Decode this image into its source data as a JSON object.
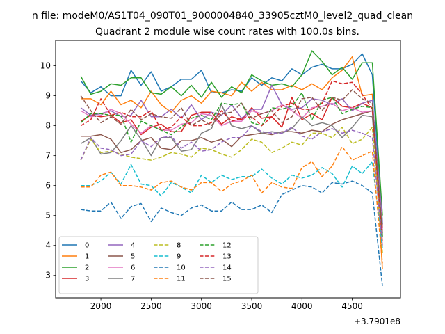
{
  "chart_data": {
    "type": "line",
    "suptitle": "n file: modeM0/AS1T04_090T01_9000004840_33905cztM0_level2_quad_clean",
    "title": "Quadrant 2 module wise count rates with 100.0s bins.",
    "xlabel": "",
    "ylabel": "",
    "x_offset_label": "+3.7901e8",
    "xlim": [
      1550,
      4980
    ],
    "ylim": [
      2.25,
      10.85
    ],
    "xticks": [
      2000,
      2500,
      3000,
      3500,
      4000,
      4500
    ],
    "yticks": [
      3,
      4,
      5,
      6,
      7,
      8,
      9,
      10
    ],
    "legend_position": "lower-left",
    "x": [
      1800,
      1900,
      2000,
      2100,
      2200,
      2300,
      2400,
      2500,
      2600,
      2700,
      2800,
      2900,
      3000,
      3100,
      3200,
      3300,
      3400,
      3500,
      3600,
      3700,
      3800,
      3900,
      4000,
      4100,
      4200,
      4300,
      4400,
      4500,
      4600,
      4700,
      4800
    ],
    "series": [
      {
        "name": "0",
        "color": "#1f77b4",
        "dash": "solid",
        "values": [
          9.5,
          9.1,
          9.3,
          9.0,
          9.0,
          9.85,
          9.35,
          9.8,
          9.15,
          9.3,
          9.55,
          9.55,
          9.85,
          9.1,
          9.1,
          9.2,
          9.15,
          9.6,
          9.35,
          9.6,
          9.5,
          9.9,
          9.7,
          9.95,
          10.05,
          9.9,
          9.9,
          10.05,
          10.4,
          9.7,
          4.7
        ]
      },
      {
        "name": "1",
        "color": "#ff7f0e",
        "dash": "solid",
        "values": [
          8.9,
          8.9,
          8.7,
          9.15,
          8.7,
          8.85,
          8.6,
          9.15,
          8.7,
          8.45,
          8.85,
          9.0,
          8.75,
          9.15,
          9.1,
          9.0,
          9.45,
          9.15,
          9.45,
          9.2,
          9.2,
          9.35,
          9.2,
          9.4,
          9.2,
          9.6,
          9.85,
          10.3,
          9.0,
          9.05,
          3.2
        ]
      },
      {
        "name": "2",
        "color": "#2ca02c",
        "dash": "solid",
        "values": [
          9.65,
          9.05,
          9.15,
          9.4,
          9.35,
          9.6,
          9.6,
          9.1,
          9.05,
          9.3,
          9.0,
          9.35,
          8.95,
          9.45,
          8.95,
          9.3,
          9.1,
          9.7,
          9.5,
          9.35,
          9.4,
          9.3,
          9.7,
          10.5,
          10.15,
          9.7,
          9.95,
          9.55,
          10.1,
          10.1,
          5.0
        ]
      },
      {
        "name": "3",
        "color": "#d62728",
        "dash": "solid",
        "values": [
          8.15,
          8.35,
          8.3,
          8.35,
          8.1,
          8.2,
          7.7,
          7.95,
          8.05,
          7.8,
          7.8,
          8.35,
          8.45,
          8.45,
          8.05,
          8.3,
          8.2,
          8.6,
          8.25,
          8.3,
          7.95,
          8.95,
          8.2,
          8.4,
          8.2,
          8.95,
          8.65,
          8.6,
          8.75,
          8.6,
          4.6
        ]
      },
      {
        "name": "4",
        "color": "#9467bd",
        "dash": "solid",
        "values": [
          8.6,
          8.35,
          8.4,
          8.5,
          8.3,
          8.35,
          8.85,
          8.3,
          8.3,
          8.55,
          8.25,
          8.7,
          8.2,
          8.45,
          8.35,
          8.7,
          8.25,
          8.55,
          8.55,
          9.35,
          8.7,
          8.55,
          8.6,
          8.9,
          8.85,
          8.7,
          8.9,
          8.5,
          8.75,
          8.85,
          4.8
        ]
      },
      {
        "name": "5",
        "color": "#8c564b",
        "dash": "solid",
        "values": [
          7.65,
          7.65,
          7.7,
          7.55,
          7.1,
          7.2,
          7.5,
          7.6,
          7.25,
          7.2,
          7.5,
          7.5,
          7.6,
          7.45,
          7.55,
          7.3,
          7.65,
          7.7,
          7.75,
          7.7,
          7.8,
          7.8,
          7.75,
          7.85,
          7.8,
          8.05,
          8.2,
          8.3,
          8.4,
          8.5,
          4.3
        ]
      },
      {
        "name": "6",
        "color": "#e377c2",
        "dash": "solid",
        "values": [
          8.5,
          8.3,
          8.35,
          8.55,
          8.4,
          8.05,
          7.75,
          8.0,
          7.85,
          7.85,
          8.05,
          8.1,
          8.4,
          8.35,
          8.0,
          8.15,
          8.15,
          8.5,
          8.4,
          8.5,
          8.7,
          8.5,
          8.25,
          8.6,
          8.65,
          8.75,
          8.5,
          8.6,
          8.45,
          8.5,
          4.5
        ]
      },
      {
        "name": "7",
        "color": "#7f7f7f",
        "dash": "solid",
        "values": [
          7.4,
          7.6,
          7.05,
          7.1,
          7.5,
          8.0,
          7.55,
          7.0,
          7.6,
          7.6,
          7.15,
          7.2,
          7.75,
          7.9,
          8.7,
          8.0,
          7.9,
          8.0,
          7.75,
          7.8,
          7.75,
          7.9,
          8.3,
          8.0,
          8.1,
          8.0,
          7.6,
          7.95,
          8.35,
          8.3,
          4.4
        ]
      },
      {
        "name": "8",
        "color": "#bcbd22",
        "dash": "dashed",
        "values": [
          6.85,
          7.55,
          7.1,
          7.15,
          7.05,
          6.95,
          6.9,
          6.85,
          6.95,
          7.1,
          7.05,
          6.95,
          7.25,
          7.2,
          7.05,
          6.95,
          7.2,
          7.55,
          7.45,
          7.1,
          7.25,
          7.45,
          7.35,
          7.75,
          7.75,
          7.6,
          7.95,
          7.4,
          7.55,
          7.95,
          3.75
        ]
      },
      {
        "name": "9",
        "color": "#17becf",
        "dash": "dashed",
        "values": [
          6.0,
          6.0,
          6.15,
          6.45,
          6.05,
          6.7,
          6.05,
          6.0,
          5.65,
          6.1,
          5.95,
          5.75,
          6.35,
          6.1,
          6.35,
          6.2,
          6.3,
          6.3,
          6.55,
          6.25,
          6.05,
          6.35,
          6.25,
          6.35,
          6.6,
          6.4,
          5.95,
          6.65,
          6.4,
          6.8,
          3.9
        ]
      },
      {
        "name": "10",
        "color": "#1f77b4",
        "dash": "dashed",
        "values": [
          5.2,
          5.15,
          5.15,
          5.45,
          4.9,
          5.3,
          5.4,
          4.8,
          5.25,
          5.1,
          5.0,
          5.25,
          5.35,
          5.15,
          5.15,
          5.45,
          5.2,
          5.2,
          5.35,
          5.1,
          5.7,
          5.85,
          6.0,
          5.95,
          5.75,
          6.1,
          6.05,
          6.15,
          6.0,
          5.75,
          2.65
        ]
      },
      {
        "name": "11",
        "color": "#ff7f0e",
        "dash": "dashed",
        "values": [
          5.95,
          5.95,
          6.35,
          6.45,
          6.0,
          6.0,
          5.95,
          5.85,
          6.1,
          6.15,
          5.95,
          5.85,
          6.1,
          6.1,
          5.8,
          6.05,
          6.15,
          6.35,
          5.75,
          6.1,
          5.95,
          5.9,
          6.6,
          6.8,
          6.3,
          6.65,
          7.3,
          6.85,
          7.0,
          7.15,
          3.4
        ]
      },
      {
        "name": "12",
        "color": "#2ca02c",
        "dash": "dashed",
        "values": [
          8.1,
          8.4,
          8.4,
          8.35,
          8.35,
          7.45,
          8.15,
          8.0,
          7.85,
          7.7,
          7.95,
          8.25,
          8.35,
          8.2,
          8.75,
          8.7,
          8.75,
          8.1,
          8.0,
          8.6,
          8.55,
          8.65,
          9.1,
          8.2,
          8.85,
          8.95,
          8.4,
          8.55,
          8.65,
          8.6,
          4.3
        ]
      },
      {
        "name": "13",
        "color": "#d62728",
        "dash": "dashed",
        "values": [
          8.0,
          8.2,
          8.9,
          8.35,
          8.45,
          8.3,
          8.3,
          8.5,
          7.85,
          7.95,
          8.3,
          8.0,
          8.0,
          8.1,
          8.5,
          8.15,
          8.25,
          8.3,
          8.0,
          8.3,
          8.65,
          8.75,
          8.55,
          8.55,
          8.75,
          9.5,
          9.4,
          9.45,
          9.05,
          8.55,
          4.1
        ]
      },
      {
        "name": "14",
        "color": "#9467bd",
        "dash": "dashed",
        "values": [
          6.85,
          7.6,
          7.25,
          7.2,
          7.0,
          7.05,
          7.5,
          7.3,
          7.6,
          7.65,
          7.25,
          7.45,
          7.15,
          7.2,
          7.45,
          7.6,
          7.6,
          8.0,
          7.8,
          7.75,
          7.75,
          7.95,
          7.65,
          7.55,
          7.8,
          7.9,
          7.75,
          7.85,
          7.75,
          7.6,
          4.0
        ]
      },
      {
        "name": "15",
        "color": "#8c564b",
        "dash": "dashed",
        "values": [
          9.0,
          8.5,
          8.1,
          8.3,
          8.05,
          8.55,
          8.2,
          8.4,
          8.3,
          8.25,
          8.6,
          8.0,
          8.2,
          8.0,
          8.4,
          8.45,
          8.75,
          8.25,
          8.4,
          8.5,
          8.1,
          8.3,
          8.9,
          8.95,
          8.5,
          8.95,
          8.85,
          9.2,
          8.9,
          8.75,
          4.4
        ]
      }
    ]
  }
}
